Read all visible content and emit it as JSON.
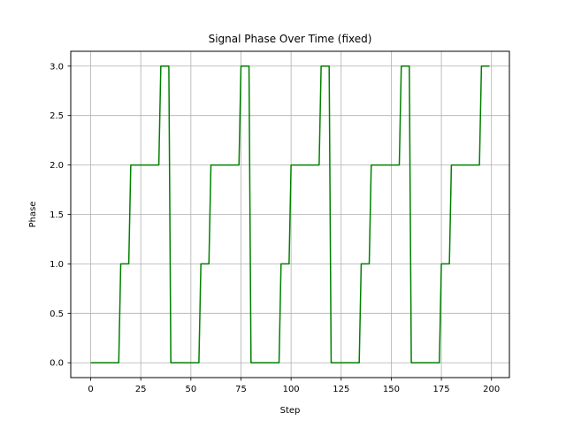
{
  "chart_data": {
    "type": "line",
    "title": "Signal Phase Over Time (fixed)",
    "xlabel": "Step",
    "ylabel": "Phase",
    "xlim": [
      -9.95,
      208.95
    ],
    "ylim": [
      -0.15,
      3.15
    ],
    "xticks": [
      0,
      25,
      50,
      75,
      100,
      125,
      150,
      175,
      200
    ],
    "xtick_labels": [
      "0",
      "25",
      "50",
      "75",
      "100",
      "125",
      "150",
      "175",
      "200"
    ],
    "yticks": [
      0.0,
      0.5,
      1.0,
      1.5,
      2.0,
      2.5,
      3.0
    ],
    "ytick_labels": [
      "0.0",
      "0.5",
      "1.0",
      "1.5",
      "2.0",
      "2.5",
      "3.0"
    ],
    "grid": true,
    "legend": "none",
    "series": [
      {
        "color": "#008000",
        "style": "step",
        "segments": [
          {
            "start": 0,
            "end": 14,
            "value": 0
          },
          {
            "start": 15,
            "end": 19,
            "value": 1
          },
          {
            "start": 20,
            "end": 34,
            "value": 2
          },
          {
            "start": 35,
            "end": 39,
            "value": 3
          },
          {
            "start": 40,
            "end": 54,
            "value": 0
          },
          {
            "start": 55,
            "end": 59,
            "value": 1
          },
          {
            "start": 60,
            "end": 74,
            "value": 2
          },
          {
            "start": 75,
            "end": 79,
            "value": 3
          },
          {
            "start": 80,
            "end": 94,
            "value": 0
          },
          {
            "start": 95,
            "end": 99,
            "value": 1
          },
          {
            "start": 100,
            "end": 114,
            "value": 2
          },
          {
            "start": 115,
            "end": 119,
            "value": 3
          },
          {
            "start": 120,
            "end": 134,
            "value": 0
          },
          {
            "start": 135,
            "end": 139,
            "value": 1
          },
          {
            "start": 140,
            "end": 154,
            "value": 2
          },
          {
            "start": 155,
            "end": 159,
            "value": 3
          },
          {
            "start": 160,
            "end": 174,
            "value": 0
          },
          {
            "start": 175,
            "end": 179,
            "value": 1
          },
          {
            "start": 180,
            "end": 194,
            "value": 2
          },
          {
            "start": 195,
            "end": 199,
            "value": 3
          }
        ]
      }
    ]
  }
}
